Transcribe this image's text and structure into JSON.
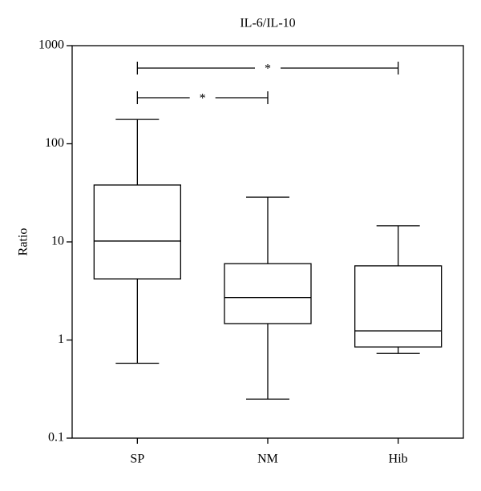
{
  "chart_data": {
    "type": "box",
    "title": "IL-6/IL-10",
    "y_label": "Ratio",
    "categories": [
      "SP",
      "NM",
      "Hib"
    ],
    "whisker_low": [
      0.58,
      0.25,
      0.73
    ],
    "q1": [
      4.2,
      1.47,
      0.85
    ],
    "median": [
      10.2,
      2.7,
      1.24
    ],
    "q3": [
      38,
      6.0,
      5.7
    ],
    "whisker_high": [
      177,
      28.6,
      14.6
    ],
    "color": "#000000",
    "log_scale": true,
    "ylim": [
      0.1,
      1000
    ],
    "yticks": [
      0.1,
      1,
      10,
      100,
      1000
    ],
    "significance": [
      {
        "groups": [
          "SP",
          "Hib"
        ],
        "label": "*"
      },
      {
        "groups": [
          "SP",
          "NM"
        ],
        "label": "*"
      }
    ]
  }
}
